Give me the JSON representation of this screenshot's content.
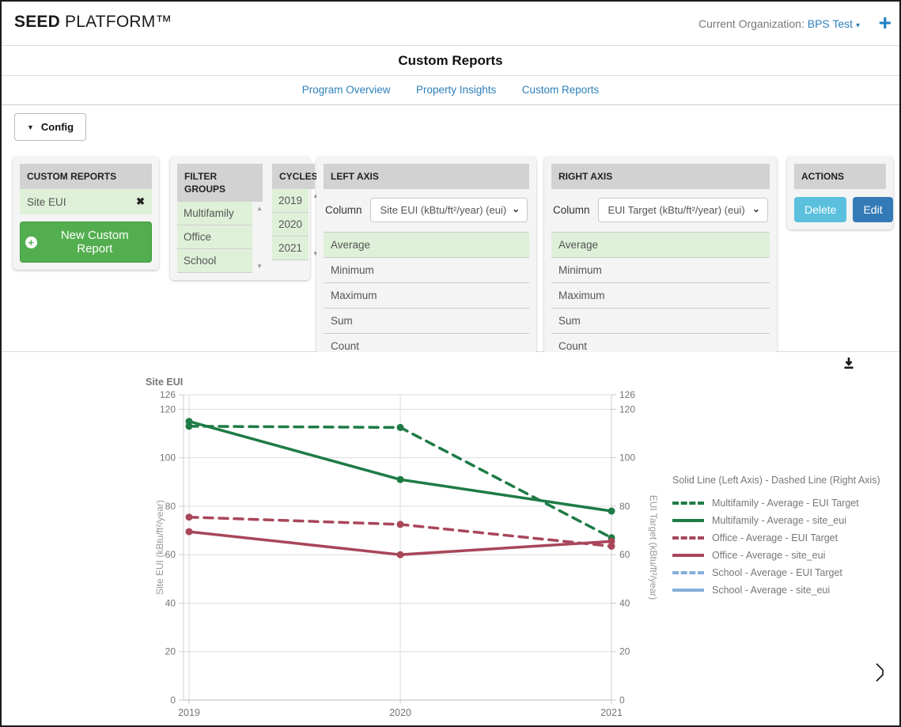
{
  "header": {
    "brand_bold": "SEED",
    "brand_rest": " PLATFORM™",
    "org_label": "Current Organization:",
    "org_name": "BPS Test",
    "org_caret": "▾",
    "plus_label": "+"
  },
  "page_title": "Custom Reports",
  "nav": {
    "items": [
      {
        "label": "Program Overview"
      },
      {
        "label": "Property Insights"
      },
      {
        "label": "Custom Reports"
      }
    ]
  },
  "config": {
    "button_label": "Config",
    "caret": "▼"
  },
  "panels": {
    "custom_reports": {
      "title": "CUSTOM REPORTS",
      "items": [
        {
          "label": "Site EUI",
          "close": "✖"
        }
      ],
      "new_button_label": "New Custom Report",
      "new_button_icon": "+"
    },
    "filter_groups": {
      "title": "FILTER GROUPS",
      "items": [
        "Multifamily",
        "Office",
        "School"
      ],
      "up_arrow": "▲",
      "down_arrow": "▼"
    },
    "cycles": {
      "title": "CYCLES",
      "items": [
        "2019",
        "2020",
        "2021"
      ],
      "up_arrow": "▲",
      "down_arrow": "▼"
    },
    "left_axis": {
      "title": "LEFT AXIS",
      "column_label": "Column",
      "column_value": "Site EUI (kBtu/ft²/year) (eui)",
      "chevron": "⌄",
      "options": [
        "Average",
        "Minimum",
        "Maximum",
        "Sum",
        "Count"
      ],
      "selected_option": "Average"
    },
    "right_axis": {
      "title": "RIGHT AXIS",
      "column_label": "Column",
      "column_value": "EUI Target (kBtu/ft²/year) (eui)",
      "chevron": "⌄",
      "options": [
        "Average",
        "Minimum",
        "Maximum",
        "Sum",
        "Count"
      ],
      "selected_option": "Average"
    },
    "actions": {
      "title": "ACTIONS",
      "delete_label": "Delete",
      "edit_label": "Edit"
    }
  },
  "chart_data": {
    "type": "line",
    "title": "Site EUI",
    "x": [
      2019,
      2020,
      2021
    ],
    "xticklabels": [
      "2019",
      "2020",
      "2021"
    ],
    "ylim": [
      0,
      126
    ],
    "yticks": [
      0,
      20,
      40,
      60,
      80,
      100,
      120,
      126
    ],
    "left_ylabel": "Site EUI (kBtu/ft²/year)",
    "right_ylabel": "EUI Target (kBtu/ft²/year)",
    "grid": true,
    "legend_position": "right",
    "legend_title": "Solid Line (Left Axis) - Dashed Line (Right Axis)",
    "series": [
      {
        "name": "Multifamily - Average - EUI Target",
        "axis": "right",
        "dashed": true,
        "color": "#1e7b46",
        "values": [
          113,
          112.5,
          67
        ]
      },
      {
        "name": "Multifamily - Average - site_eui",
        "axis": "left",
        "dashed": false,
        "color": "#1e7b46",
        "values": [
          115,
          91,
          78
        ]
      },
      {
        "name": "Office - Average - EUI Target",
        "axis": "right",
        "dashed": true,
        "color": "#a8465a",
        "values": [
          75.5,
          72.5,
          63.5
        ]
      },
      {
        "name": "Office - Average - site_eui",
        "axis": "left",
        "dashed": false,
        "color": "#a8465a",
        "values": [
          69.5,
          60,
          65.5
        ]
      },
      {
        "name": "School - Average - EUI Target",
        "axis": "right",
        "dashed": true,
        "color": "#85afd9",
        "values": []
      },
      {
        "name": "School - Average - site_eui",
        "axis": "left",
        "dashed": false,
        "color": "#85afd9",
        "values": []
      }
    ]
  },
  "colors": {
    "link_blue": "#2e80b9",
    "multifamily_green": "#1e7b46",
    "office_maroon": "#a8465a",
    "school_blue": "#85afd9",
    "selected_green_bg": "#dff0d8",
    "delete_blue": "#5bc0de",
    "edit_blue": "#337ab7",
    "new_report_green": "#53ae4f",
    "panel_header_gray": "#d2d2d2"
  }
}
